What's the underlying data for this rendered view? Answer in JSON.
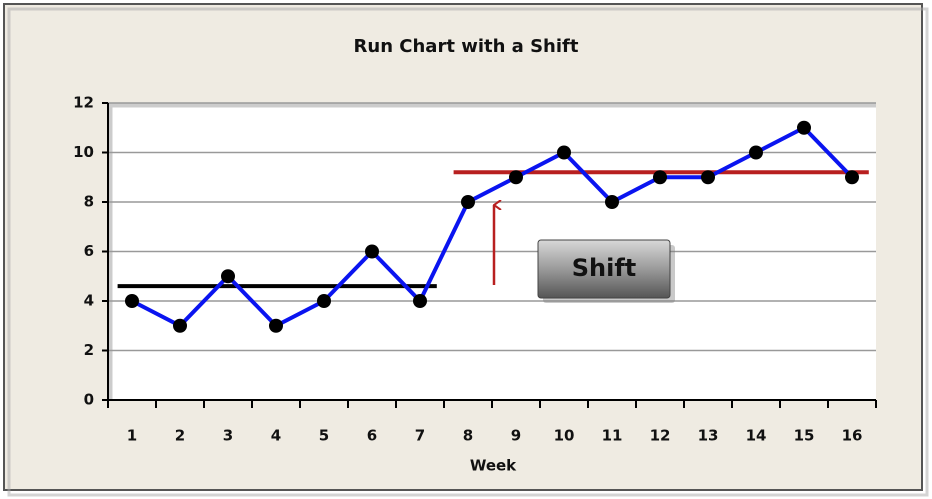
{
  "chart_data": {
    "type": "line",
    "title": "Run Chart with a Shift",
    "x_label": "Week",
    "categories": [
      "1",
      "2",
      "3",
      "4",
      "5",
      "6",
      "7",
      "8",
      "9",
      "10",
      "11",
      "12",
      "13",
      "14",
      "15",
      "16"
    ],
    "series": [
      {
        "color": "#0a14f0",
        "values": [
          4,
          3,
          5,
          3,
          4,
          6,
          4,
          8,
          9,
          10,
          8,
          9,
          9,
          10,
          11,
          9
        ]
      }
    ],
    "reference_lines": [
      {
        "value": 4.6,
        "color": "#000000",
        "from": 1,
        "to": 7
      },
      {
        "value": 9.2,
        "color": "#b82020",
        "from": 8,
        "to": 16
      }
    ],
    "annotation": "Shift",
    "ylim": [
      0,
      12
    ],
    "yticks": [
      0,
      2,
      4,
      6,
      8,
      10,
      12
    ],
    "grid": true
  }
}
